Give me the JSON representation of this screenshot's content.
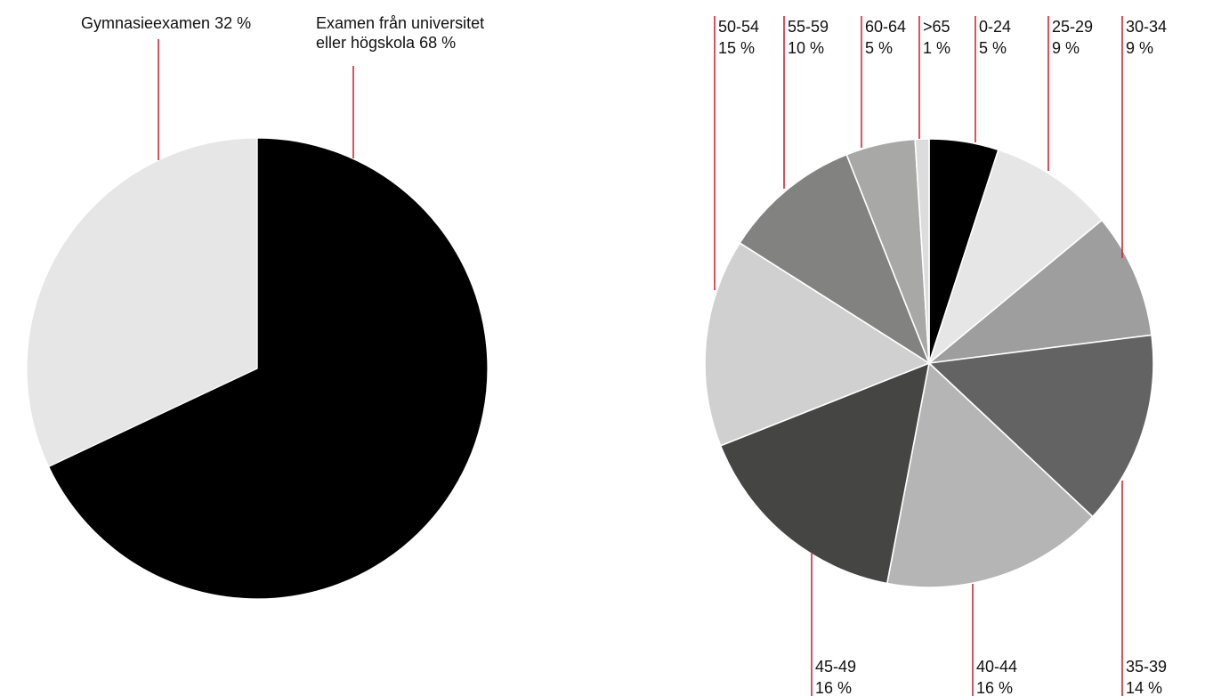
{
  "colors": {
    "leader": "#d6243a",
    "edu": [
      "#000000",
      "#e6e6e6"
    ],
    "age": [
      "#000000",
      "#e6e6e6",
      "#9e9e9e",
      "#636363",
      "#b5b5b5",
      "#454543",
      "#d0d0d0",
      "#828280",
      "#a8a8a6",
      "#dcdcdc"
    ]
  },
  "chart_data": [
    {
      "type": "pie",
      "title": "",
      "slices": [
        {
          "label_lines": [
            "Examen från universitet",
            "eller högskola 68 %"
          ],
          "category": "Examen från universitet eller högskola",
          "value": 68
        },
        {
          "label_lines": [
            "Gymnasieexamen 32 %"
          ],
          "category": "Gymnasieexamen",
          "value": 32
        }
      ]
    },
    {
      "type": "pie",
      "title": "",
      "slices": [
        {
          "category": "0-24",
          "value_label": "5 %",
          "value": 5
        },
        {
          "category": "25-29",
          "value_label": "9 %",
          "value": 9
        },
        {
          "category": "30-34",
          "value_label": "9 %",
          "value": 9
        },
        {
          "category": "35-39",
          "value_label": "14 %",
          "value": 14
        },
        {
          "category": "40-44",
          "value_label": "16 %",
          "value": 16
        },
        {
          "category": "45-49",
          "value_label": "16 %",
          "value": 16
        },
        {
          "category": "50-54",
          "value_label": "15 %",
          "value": 15
        },
        {
          "category": "55-59",
          "value_label": "10 %",
          "value": 10
        },
        {
          "category": "60-64",
          "value_label": "5 %",
          "value": 5
        },
        {
          "category": ">65",
          "value_label": "1 %",
          "value": 1
        }
      ]
    }
  ]
}
